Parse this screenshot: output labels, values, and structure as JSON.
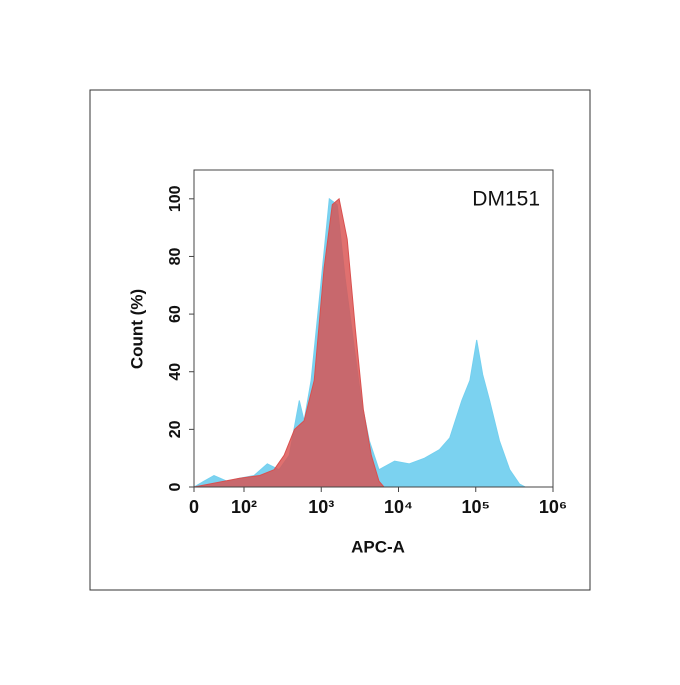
{
  "chart_data": {
    "type": "area",
    "title": "DM151",
    "xlabel": "APC-A",
    "ylabel": "Count  (%)",
    "xscale": "biexponential",
    "xlim": [
      0,
      1000000
    ],
    "xticks": [
      0,
      {
        "value": 100,
        "label": "10²"
      },
      {
        "value": 1000,
        "label": "10³"
      },
      {
        "value": 10000,
        "label": "10⁴"
      },
      {
        "value": 100000,
        "label": "10⁵"
      },
      {
        "value": 1000000,
        "label": "10⁶"
      }
    ],
    "ylim": [
      0,
      110
    ],
    "yticks": [
      0,
      20,
      40,
      60,
      80,
      100
    ],
    "series": [
      {
        "color": "#74d0ef",
        "x": [
          0,
          20,
          40,
          66,
          90,
          135,
          200,
          285,
          385,
          520,
          600,
          740,
          1000,
          1270,
          1610,
          2050,
          2690,
          3300,
          4200,
          5600,
          8900,
          13800,
          21700,
          34000,
          46000,
          66000,
          84000,
          103000,
          123000,
          151000,
          203000,
          275000,
          370000,
          435000
        ],
        "values": [
          0,
          2,
          4,
          2,
          3,
          4,
          8,
          6,
          11,
          30,
          23,
          37,
          72,
          100,
          98,
          72,
          48,
          30,
          16,
          6,
          9,
          8,
          10,
          13,
          17,
          30,
          37,
          51,
          39,
          30,
          16,
          6,
          1,
          0
        ]
      },
      {
        "color": "#d9504f",
        "x": [
          0,
          30,
          90,
          160,
          245,
          330,
          450,
          600,
          810,
          1090,
          1390,
          1700,
          2170,
          2760,
          3500,
          4450,
          5600,
          6500
        ],
        "values": [
          0,
          1,
          3,
          4,
          6,
          11,
          20,
          23,
          37,
          76,
          98,
          100,
          86,
          55,
          27,
          11,
          2,
          0
        ]
      }
    ]
  }
}
